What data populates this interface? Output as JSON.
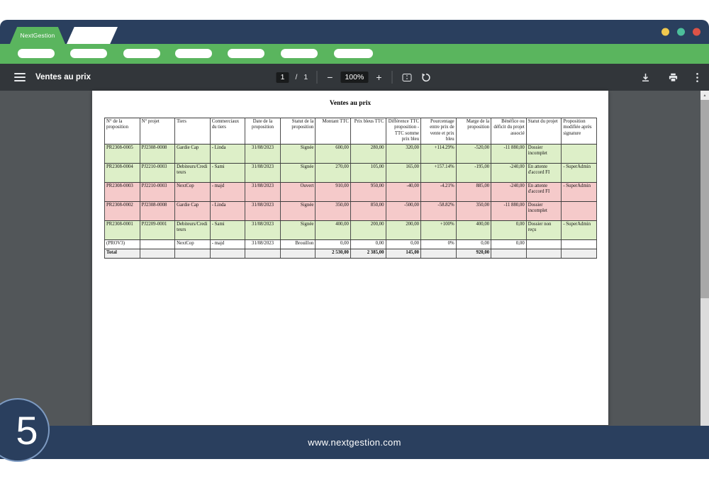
{
  "browser": {
    "tab_label": "NextGestion",
    "traffic_lights": [
      {
        "name": "yellow-circle",
        "color": "#f0c84e"
      },
      {
        "name": "teal-circle",
        "color": "#4cbf9b"
      },
      {
        "name": "red-circle",
        "color": "#dd5347"
      }
    ],
    "nav_pill_count": 7
  },
  "toolbar": {
    "title": "Ventes au prix",
    "page_current": "1",
    "page_divider": "/",
    "page_count": "1",
    "zoom_out_label": "−",
    "zoom_level": "100%",
    "zoom_in_label": "+"
  },
  "report": {
    "title": "Ventes au prix",
    "table": {
      "headers": [
        "N° de la proposition",
        "N° projet",
        "Tiers",
        "Commerciaux du tiers",
        "Date de la proposition",
        "Statut de la proposition",
        "Montant TTC",
        "Prix bleus TTC",
        "Différence TTC proposition - TTC somme prix bleu",
        "Pourcentage entre prix de vente et prix bleu",
        "Marge de la proposition",
        "Bénéfice ou déficit du projet associé",
        "Statut du projet",
        "Proposition modifiée après signature"
      ],
      "rows": [
        {
          "tone": "green",
          "cells": [
            "PR2308-0005",
            "PJ2308-0008",
            "Gardie Cap",
            "- Linda",
            "31/08/2023",
            "Signée",
            "600,00",
            "280,00",
            "320,00",
            "+114.29%",
            "-520,00",
            "-11 880,00",
            "Dossier incomplet",
            ""
          ]
        },
        {
          "tone": "green",
          "cells": [
            "PR2308-0004",
            "PJ2210-0003",
            "Debiteurs/Crediteurs",
            "- Sami",
            "31/08/2023",
            "Signée",
            "270,00",
            "105,00",
            "165,00",
            "+157.14%",
            "-195,00",
            "-240,00",
            "En attente d'accord FI",
            "- SuperAdmin"
          ]
        },
        {
          "tone": "red",
          "cells": [
            "PR2308-0003",
            "PJ2210-0003",
            "NextCop",
            "- majd",
            "31/08/2023",
            "Ouvert",
            "910,00",
            "950,00",
            "-40,00",
            "-4.21%",
            "885,00",
            "-240,00",
            "En attente d'accord FI",
            "- SuperAdmin"
          ]
        },
        {
          "tone": "red",
          "cells": [
            "PR2308-0002",
            "PJ2308-0008",
            "Gardie Cap",
            "- Linda",
            "31/08/2023",
            "Signée",
            "350,00",
            "850,00",
            "-500,00",
            "-58.82%",
            "350,00",
            "-11 880,00",
            "Dossier incomplet",
            ""
          ]
        },
        {
          "tone": "green",
          "cells": [
            "PR2308-0001",
            "PJ2209-0001",
            "Debiteurs/Crediteurs",
            "- Sami",
            "31/08/2023",
            "Signée",
            "400,00",
            "200,00",
            "200,00",
            "+100%",
            "400,00",
            "0,00",
            "Dossier non reçu",
            "- SuperAdmin"
          ]
        },
        {
          "tone": "plain",
          "cells": [
            "(PROV3)",
            "",
            "NextCop",
            "- majd",
            "31/08/2023",
            "Brouillon",
            "0,00",
            "0,00",
            "0,00",
            "0%",
            "0,00",
            "0,00",
            "",
            ""
          ]
        }
      ],
      "total_row": {
        "tone": "total",
        "cells": [
          "Total",
          "",
          "",
          "",
          "",
          "",
          "2 530,00",
          "2 385,00",
          "145,00",
          "",
          "920,00",
          "",
          "",
          ""
        ]
      }
    }
  },
  "footer": {
    "url": "www.nextgestion.com",
    "slide_number": "5"
  },
  "colors": {
    "navy": "#2a3f5e",
    "green": "#5ab55e",
    "toolbar_dark": "#32363a",
    "viewer_background": "#525659",
    "row_green": "#ddefc8",
    "row_red": "#f5caca",
    "total_row_gray": "#efefef",
    "badge_ring": "#7d9ac1"
  }
}
